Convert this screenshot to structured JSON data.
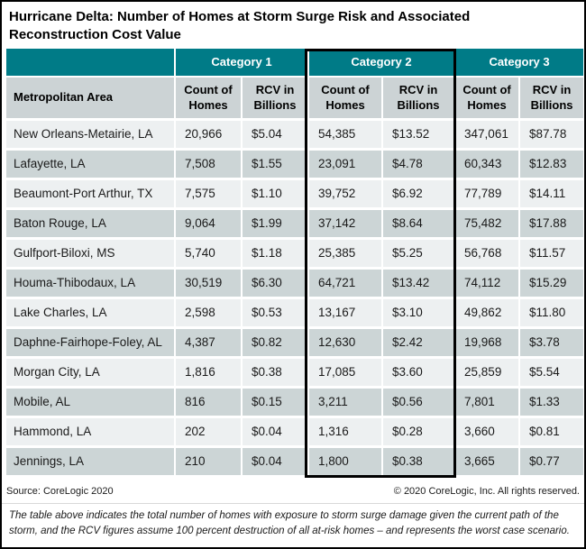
{
  "title": "Hurricane Delta: Number of Homes at Storm Surge Risk and Associated Reconstruction Cost Value",
  "colors": {
    "header_teal": "#007b87",
    "subheader_gray": "#ccd3d5",
    "row_light": "#edf0f1",
    "row_dark": "#ccd5d6",
    "highlight_border": "#000000"
  },
  "chart_data": {
    "type": "table",
    "title": "Hurricane Delta: Number of Homes at Storm Surge Risk and Associated Reconstruction Cost Value",
    "column_groups": [
      "Category 1",
      "Category 2",
      "Category 3"
    ],
    "columns": [
      "Metropolitan Area",
      "Count of Homes",
      "RCV in Billions",
      "Count of Homes",
      "RCV in Billions",
      "Count of Homes",
      "RCV in Billions"
    ],
    "highlighted_group": "Category 2",
    "rows": [
      [
        "New Orleans-Metairie, LA",
        "20,966",
        "$5.04",
        "54,385",
        "$13.52",
        "347,061",
        "$87.78"
      ],
      [
        "Lafayette, LA",
        "7,508",
        "$1.55",
        "23,091",
        "$4.78",
        "60,343",
        "$12.83"
      ],
      [
        "Beaumont-Port Arthur, TX",
        "7,575",
        "$1.10",
        "39,752",
        "$6.92",
        "77,789",
        "$14.11"
      ],
      [
        "Baton Rouge, LA",
        "9,064",
        "$1.99",
        "37,142",
        "$8.64",
        "75,482",
        "$17.88"
      ],
      [
        "Gulfport-Biloxi, MS",
        "5,740",
        "$1.18",
        "25,385",
        "$5.25",
        "56,768",
        "$11.57"
      ],
      [
        "Houma-Thibodaux, LA",
        "30,519",
        "$6.30",
        "64,721",
        "$13.42",
        "74,112",
        "$15.29"
      ],
      [
        "Lake Charles, LA",
        "2,598",
        "$0.53",
        "13,167",
        "$3.10",
        "49,862",
        "$11.80"
      ],
      [
        "Daphne-Fairhope-Foley, AL",
        "4,387",
        "$0.82",
        "12,630",
        "$2.42",
        "19,968",
        "$3.78"
      ],
      [
        "Morgan City, LA",
        "1,816",
        "$0.38",
        "17,085",
        "$3.60",
        "25,859",
        "$5.54"
      ],
      [
        "Mobile, AL",
        "816",
        "$0.15",
        "3,211",
        "$0.56",
        "7,801",
        "$1.33"
      ],
      [
        "Hammond, LA",
        "202",
        "$0.04",
        "1,316",
        "$0.28",
        "3,660",
        "$0.81"
      ],
      [
        "Jennings, LA",
        "210",
        "$0.04",
        "1,800",
        "$0.38",
        "3,665",
        "$0.77"
      ]
    ]
  },
  "footer": {
    "source": "Source: CoreLogic 2020",
    "copyright": "© 2020 CoreLogic, Inc. All rights reserved.",
    "note": "The table above indicates the total number of homes with exposure to storm surge damage given the current path of the storm, and the RCV figures assume 100 percent destruction of all at-risk homes – and represents the worst case scenario."
  }
}
